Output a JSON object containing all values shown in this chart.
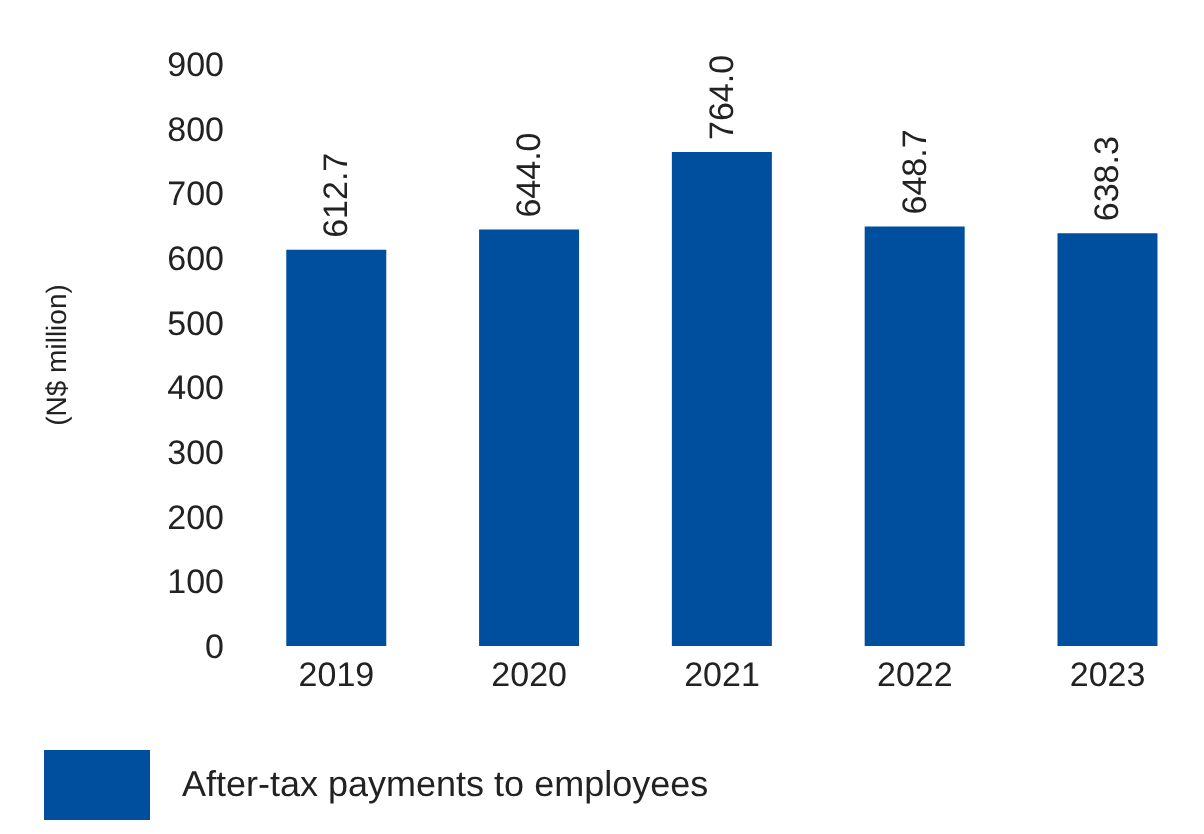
{
  "chart_data": {
    "type": "bar",
    "ylabel": "(N$ million)",
    "categories": [
      "2019",
      "2020",
      "2021",
      "2022",
      "2023"
    ],
    "series": [
      {
        "name": "After-tax payments to employees",
        "color": "#004f9f",
        "values": [
          612.7,
          644.0,
          764.0,
          648.7,
          638.3
        ]
      }
    ],
    "value_labels": [
      "612.7",
      "644.0",
      "764.0",
      "648.7",
      "638.3"
    ],
    "ylim": [
      0,
      900
    ],
    "yticks": [
      0,
      100,
      200,
      300,
      400,
      500,
      600,
      700,
      800,
      900
    ],
    "grid": false,
    "legend": "bottom left"
  }
}
